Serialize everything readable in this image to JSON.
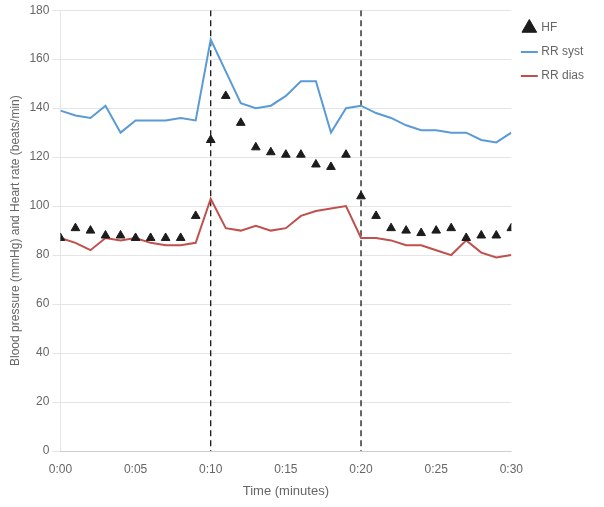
{
  "chart_data": {
    "type": "line",
    "xlabel": "Time (minutes)",
    "ylabel": "Blood pressure (mmHg) and Heart rate (beats/min)",
    "x": [
      0,
      1,
      2,
      3,
      4,
      5,
      6,
      7,
      8,
      9,
      10,
      11,
      12,
      13,
      14,
      15,
      16,
      17,
      18,
      19,
      20,
      21,
      22,
      23,
      24,
      25,
      26,
      27,
      28,
      29,
      30
    ],
    "series": [
      {
        "name": "RR syst",
        "color": "#5B9BD5",
        "type": "line",
        "line_style": "solid",
        "values": [
          139,
          137,
          136,
          141,
          130,
          135,
          135,
          135,
          136,
          135,
          168,
          155,
          142,
          140,
          141,
          145,
          151,
          151,
          130,
          140,
          141,
          138,
          136,
          133,
          131,
          131,
          130,
          130,
          127,
          126,
          130
        ]
      },
      {
        "name": "RR dias",
        "color": "#C0504D",
        "type": "line",
        "line_style": "solid",
        "values": [
          87,
          85,
          82,
          87,
          86,
          87,
          85,
          84,
          84,
          85,
          103,
          91,
          90,
          92,
          90,
          91,
          96,
          98,
          99,
          100,
          87,
          87,
          86,
          84,
          84,
          82,
          80,
          86,
          81,
          79,
          80
        ]
      },
      {
        "name": "HF",
        "color": "#1C1C1C",
        "type": "scatter",
        "marker": "triangle",
        "values": [
          87,
          91,
          90,
          88,
          88,
          87,
          87,
          87,
          87,
          96,
          127,
          145,
          134,
          124,
          122,
          121,
          121,
          117,
          116,
          121,
          104,
          96,
          91,
          90,
          89,
          90,
          91,
          87,
          88,
          88,
          91
        ]
      }
    ],
    "vlines": [
      10,
      20
    ],
    "xlim": [
      0,
      30
    ],
    "xticks": [
      {
        "value": 0,
        "label": "0:00"
      },
      {
        "value": 5,
        "label": "0:05"
      },
      {
        "value": 10,
        "label": "0:10"
      },
      {
        "value": 15,
        "label": "0:15"
      },
      {
        "value": 20,
        "label": "0:20"
      },
      {
        "value": 25,
        "label": "0:25"
      },
      {
        "value": 30,
        "label": "0:30"
      }
    ],
    "ylim": [
      0,
      180
    ],
    "yticks": [
      0,
      20,
      40,
      60,
      80,
      100,
      120,
      140,
      160,
      180
    ],
    "grid": "y",
    "legend": "right"
  }
}
